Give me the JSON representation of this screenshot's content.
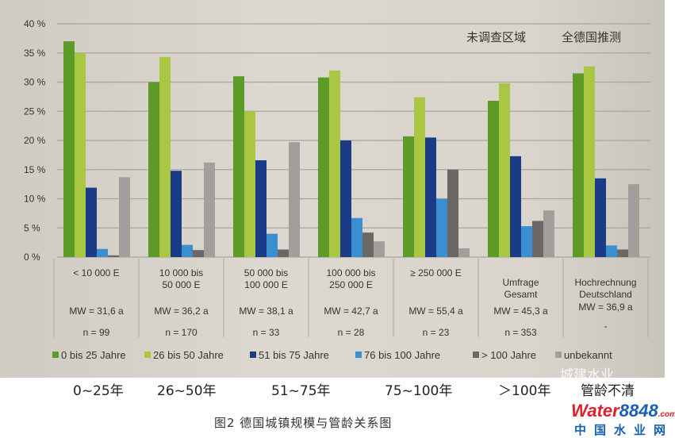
{
  "chart_data": {
    "type": "bar",
    "title": "",
    "xlabel": "",
    "ylabel": "",
    "ylim": [
      0,
      40
    ],
    "yticks": [
      "0 %",
      "5 %",
      "10 %",
      "15 %",
      "20 %",
      "25 %",
      "30 %",
      "35 %",
      "40 %"
    ],
    "grid": true,
    "legend_position": "bottom",
    "annotations": [
      "未调查区域",
      "全德国推测"
    ],
    "categories": [
      {
        "name": "< 10 000 E",
        "mw": "MW = 31,6 a",
        "n": "n = 99"
      },
      {
        "name": "10 000 bis 50 000 E",
        "mw": "MW = 36,2 a",
        "n": "n = 170"
      },
      {
        "name": "50 000 bis 100 000 E",
        "mw": "MW = 38,1 a",
        "n": "n = 33"
      },
      {
        "name": "100 000 bis 250 000 E",
        "mw": "MW = 42,7 a",
        "n": "n = 28"
      },
      {
        "name": "≥ 250 000 E",
        "mw": "MW = 55,4 a",
        "n": "n = 23"
      },
      {
        "name": "Umfrage Gesamt",
        "mw": "MW = 45,3 a",
        "n": "n = 353"
      },
      {
        "name": "Hochrechnung Deutschland",
        "mw": "MW = 36,9 a",
        "n": "-"
      }
    ],
    "series": [
      {
        "name": "0 bis 25 Jahre",
        "color": "#5d9a28",
        "values": [
          37.0,
          30.0,
          31.0,
          30.8,
          20.7,
          26.8,
          31.5
        ]
      },
      {
        "name": "26 bis 50 Jahre",
        "color": "#a9c743",
        "values": [
          35.0,
          34.3,
          25.0,
          32.0,
          27.4,
          29.8,
          32.7
        ]
      },
      {
        "name": "51 bis 75 Jahre",
        "color": "#1a3c86",
        "values": [
          11.9,
          14.8,
          16.6,
          20.0,
          20.5,
          17.3,
          13.5
        ]
      },
      {
        "name": "76 bis 100 Jahre",
        "color": "#3a8fd0",
        "values": [
          1.4,
          2.1,
          4.0,
          6.7,
          10.0,
          5.3,
          2.0
        ]
      },
      {
        "name": "> 100 Jahre",
        "color": "#6b6766",
        "values": [
          0.3,
          1.2,
          1.3,
          4.2,
          15.0,
          6.2,
          1.3
        ]
      },
      {
        "name": "unbekannt",
        "color": "#a39e9c",
        "values": [
          13.7,
          16.2,
          19.7,
          2.7,
          1.5,
          8.0,
          12.5
        ]
      }
    ]
  },
  "translations": [
    "0~25年",
    "26~50年",
    "51~75年",
    "75~100年",
    "＞100年",
    "管龄不清"
  ],
  "caption": "图2   德国城镇规模与管龄关系图",
  "watermark": "城建水业",
  "logo": {
    "water": "Water",
    "num": "8848",
    "com": ".com",
    "site": "中国水业网"
  }
}
